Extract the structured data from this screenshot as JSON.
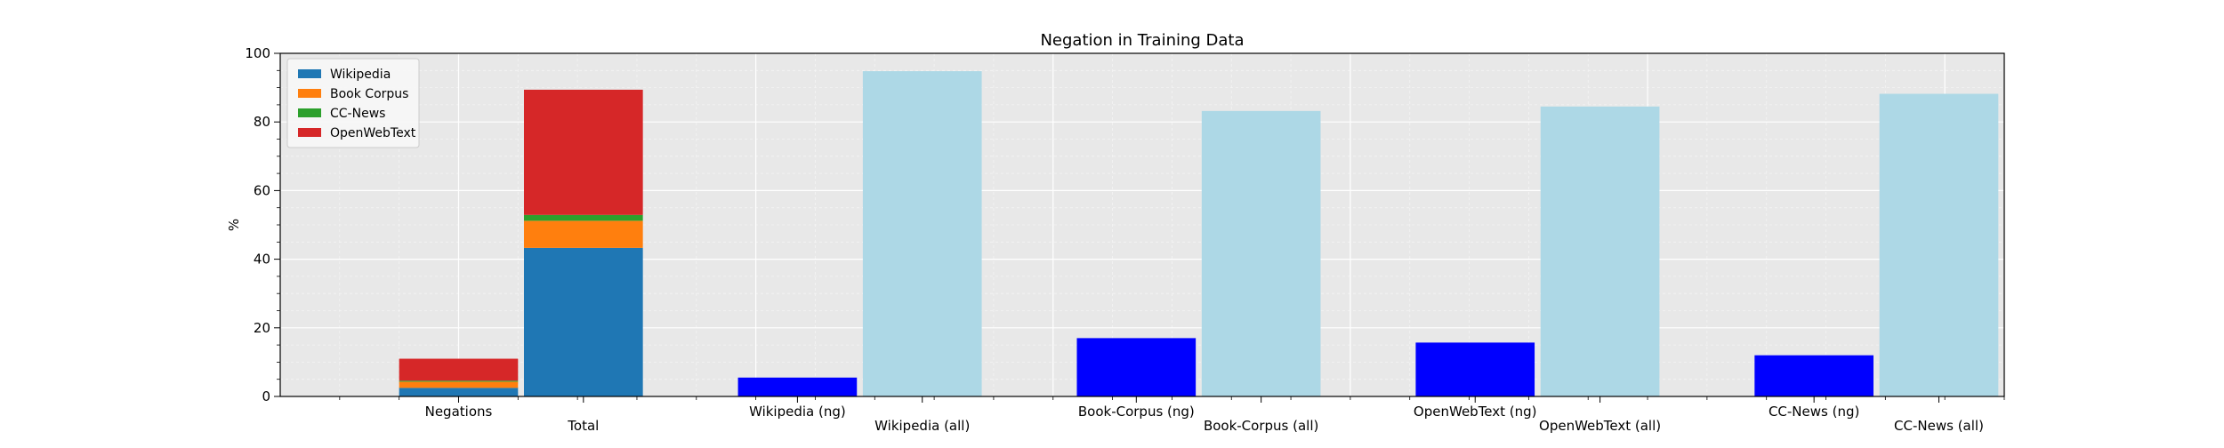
{
  "chart_data": {
    "type": "bar",
    "title": "Negation in Training Data",
    "xlabel": "",
    "ylabel": "%",
    "ylim": [
      0,
      100
    ],
    "yticks": [
      0,
      20,
      40,
      60,
      80,
      100
    ],
    "grid": true,
    "legend_position": "upper-left",
    "legend": [
      {
        "name": "Wikipedia",
        "color": "#1f77b4"
      },
      {
        "name": "Book Corpus",
        "color": "#ff7f0e"
      },
      {
        "name": "CC-News",
        "color": "#2ca02c"
      },
      {
        "name": "OpenWebText",
        "color": "#d62728"
      }
    ],
    "categories": [
      {
        "label": "Negations",
        "row": 0
      },
      {
        "label": "Total",
        "row": 1
      },
      {
        "label": "Wikipedia (ng)",
        "row": 0
      },
      {
        "label": "Wikipedia (all)",
        "row": 1
      },
      {
        "label": "Book-Corpus (ng)",
        "row": 0
      },
      {
        "label": "Book-Corpus (all)",
        "row": 1
      },
      {
        "label": "OpenWebText (ng)",
        "row": 0
      },
      {
        "label": "OpenWebText (all)",
        "row": 1
      },
      {
        "label": "CC-News (ng)",
        "row": 0
      },
      {
        "label": "CC-News (all)",
        "row": 1
      }
    ],
    "stacked_bars": [
      {
        "category": "Negations",
        "segments": [
          {
            "series": "Wikipedia",
            "value": 2.5
          },
          {
            "series": "Book Corpus",
            "value": 1.8
          },
          {
            "series": "CC-News",
            "value": 0.3
          },
          {
            "series": "OpenWebText",
            "value": 6.4
          }
        ]
      },
      {
        "category": "Total",
        "segments": [
          {
            "series": "Wikipedia",
            "value": 43.3
          },
          {
            "series": "Book Corpus",
            "value": 7.9
          },
          {
            "series": "CC-News",
            "value": 1.7
          },
          {
            "series": "OpenWebText",
            "value": 36.5
          }
        ]
      }
    ],
    "simple_bars": [
      {
        "category": "Wikipedia (ng)",
        "value": 5.5,
        "color": "#0000ff"
      },
      {
        "category": "Wikipedia (all)",
        "value": 94.8,
        "color": "#add8e6"
      },
      {
        "category": "Book-Corpus (ng)",
        "value": 17.0,
        "color": "#0000ff"
      },
      {
        "category": "Book-Corpus (all)",
        "value": 83.2,
        "color": "#add8e6"
      },
      {
        "category": "OpenWebText (ng)",
        "value": 15.7,
        "color": "#0000ff"
      },
      {
        "category": "OpenWebText (all)",
        "value": 84.5,
        "color": "#add8e6"
      },
      {
        "category": "CC-News (ng)",
        "value": 12.0,
        "color": "#0000ff"
      },
      {
        "category": "CC-News (all)",
        "value": 88.2,
        "color": "#add8e6"
      }
    ]
  }
}
